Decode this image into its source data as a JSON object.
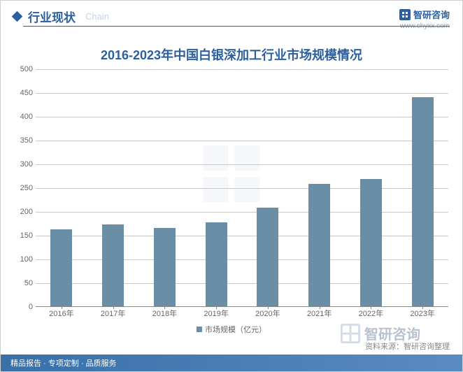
{
  "header": {
    "title": "行业现状",
    "subtitle": "Chain",
    "logo_text": "智研咨询",
    "logo_url": "www.chyxx.com"
  },
  "chart": {
    "type": "bar",
    "title": "2016-2023年中国白银深加工行业市场规模情况",
    "categories": [
      "2016年",
      "2017年",
      "2018年",
      "2019年",
      "2020年",
      "2021年",
      "2022年",
      "2023年"
    ],
    "values": [
      162,
      172,
      164,
      177,
      208,
      258,
      268,
      440
    ],
    "bar_color": "#6a8ea6",
    "ylim": [
      0,
      500
    ],
    "ytick_step": 50,
    "grid_color": "#c8c8c8",
    "background_color": "#ffffff",
    "bar_width_ratio": 0.42,
    "label_fontsize": 11,
    "title_fontsize": 18,
    "title_color": "#2b5f9e",
    "legend_label": "市场规模（亿元）"
  },
  "source": "资料来源：智研咨询整理",
  "watermark_logo_text": "智研咨询",
  "footer": "精品报告 · 专项定制 · 品质服务"
}
